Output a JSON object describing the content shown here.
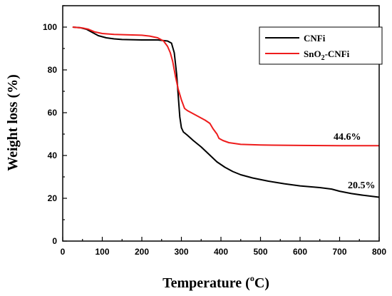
{
  "chart_data": {
    "type": "line",
    "xlabel": "Temperature (",
    "xlabel_sup": "o",
    "xlabel_tail": "C)",
    "ylabel": "Weight loss (%)",
    "xlim": [
      0,
      800
    ],
    "ylim": [
      0,
      110
    ],
    "x_ticks": [
      0,
      100,
      200,
      300,
      400,
      500,
      600,
      700,
      800
    ],
    "y_ticks": [
      0,
      20,
      40,
      60,
      80,
      100
    ],
    "x_tick_labels": [
      "0",
      "100",
      "200",
      "300",
      "400",
      "500",
      "600",
      "700",
      "800"
    ],
    "y_tick_labels": [
      "0",
      "20",
      "40",
      "60",
      "80",
      "100"
    ],
    "legend_position": "top-right",
    "series": [
      {
        "name": "CNFi",
        "color": "#000000",
        "points": [
          [
            25,
            100
          ],
          [
            45,
            99.7
          ],
          [
            60,
            99
          ],
          [
            75,
            97.5
          ],
          [
            90,
            96
          ],
          [
            110,
            95
          ],
          [
            130,
            94.5
          ],
          [
            150,
            94.2
          ],
          [
            200,
            94
          ],
          [
            240,
            94
          ],
          [
            265,
            93.5
          ],
          [
            275,
            92.5
          ],
          [
            282,
            88
          ],
          [
            288,
            78
          ],
          [
            292,
            68
          ],
          [
            296,
            58
          ],
          [
            300,
            53
          ],
          [
            305,
            51
          ],
          [
            315,
            49.5
          ],
          [
            330,
            47
          ],
          [
            350,
            44
          ],
          [
            370,
            40.5
          ],
          [
            390,
            37
          ],
          [
            410,
            34.5
          ],
          [
            430,
            32.5
          ],
          [
            450,
            31
          ],
          [
            480,
            29.5
          ],
          [
            520,
            28
          ],
          [
            560,
            26.8
          ],
          [
            600,
            25.8
          ],
          [
            650,
            25
          ],
          [
            680,
            24.3
          ],
          [
            700,
            23.3
          ],
          [
            730,
            22.2
          ],
          [
            760,
            21.4
          ],
          [
            800,
            20.5
          ]
        ]
      },
      {
        "name": "SnO2-CNFi",
        "name_prefix": "SnO",
        "name_sub": "2",
        "name_suffix": "-CNFi",
        "color": "#ee1c1c",
        "points": [
          [
            25,
            100
          ],
          [
            50,
            99.6
          ],
          [
            65,
            99
          ],
          [
            80,
            97.8
          ],
          [
            100,
            97
          ],
          [
            130,
            96.6
          ],
          [
            160,
            96.4
          ],
          [
            200,
            96.2
          ],
          [
            220,
            95.8
          ],
          [
            240,
            95
          ],
          [
            255,
            93.5
          ],
          [
            265,
            91
          ],
          [
            272,
            88
          ],
          [
            278,
            84
          ],
          [
            285,
            77
          ],
          [
            292,
            71
          ],
          [
            300,
            66
          ],
          [
            308,
            62
          ],
          [
            315,
            61
          ],
          [
            330,
            59.5
          ],
          [
            345,
            58
          ],
          [
            360,
            56.5
          ],
          [
            372,
            55
          ],
          [
            380,
            52.5
          ],
          [
            390,
            50
          ],
          [
            395,
            48
          ],
          [
            405,
            47
          ],
          [
            420,
            46
          ],
          [
            450,
            45.2
          ],
          [
            500,
            44.9
          ],
          [
            600,
            44.7
          ],
          [
            700,
            44.6
          ],
          [
            800,
            44.6
          ]
        ]
      }
    ],
    "annotations": [
      {
        "text": "44.6%",
        "x": 800,
        "y": 44.6,
        "series": "SnO2-CNFi"
      },
      {
        "text": "20.5%",
        "x": 800,
        "y": 20.5,
        "series": "CNFi"
      }
    ]
  }
}
